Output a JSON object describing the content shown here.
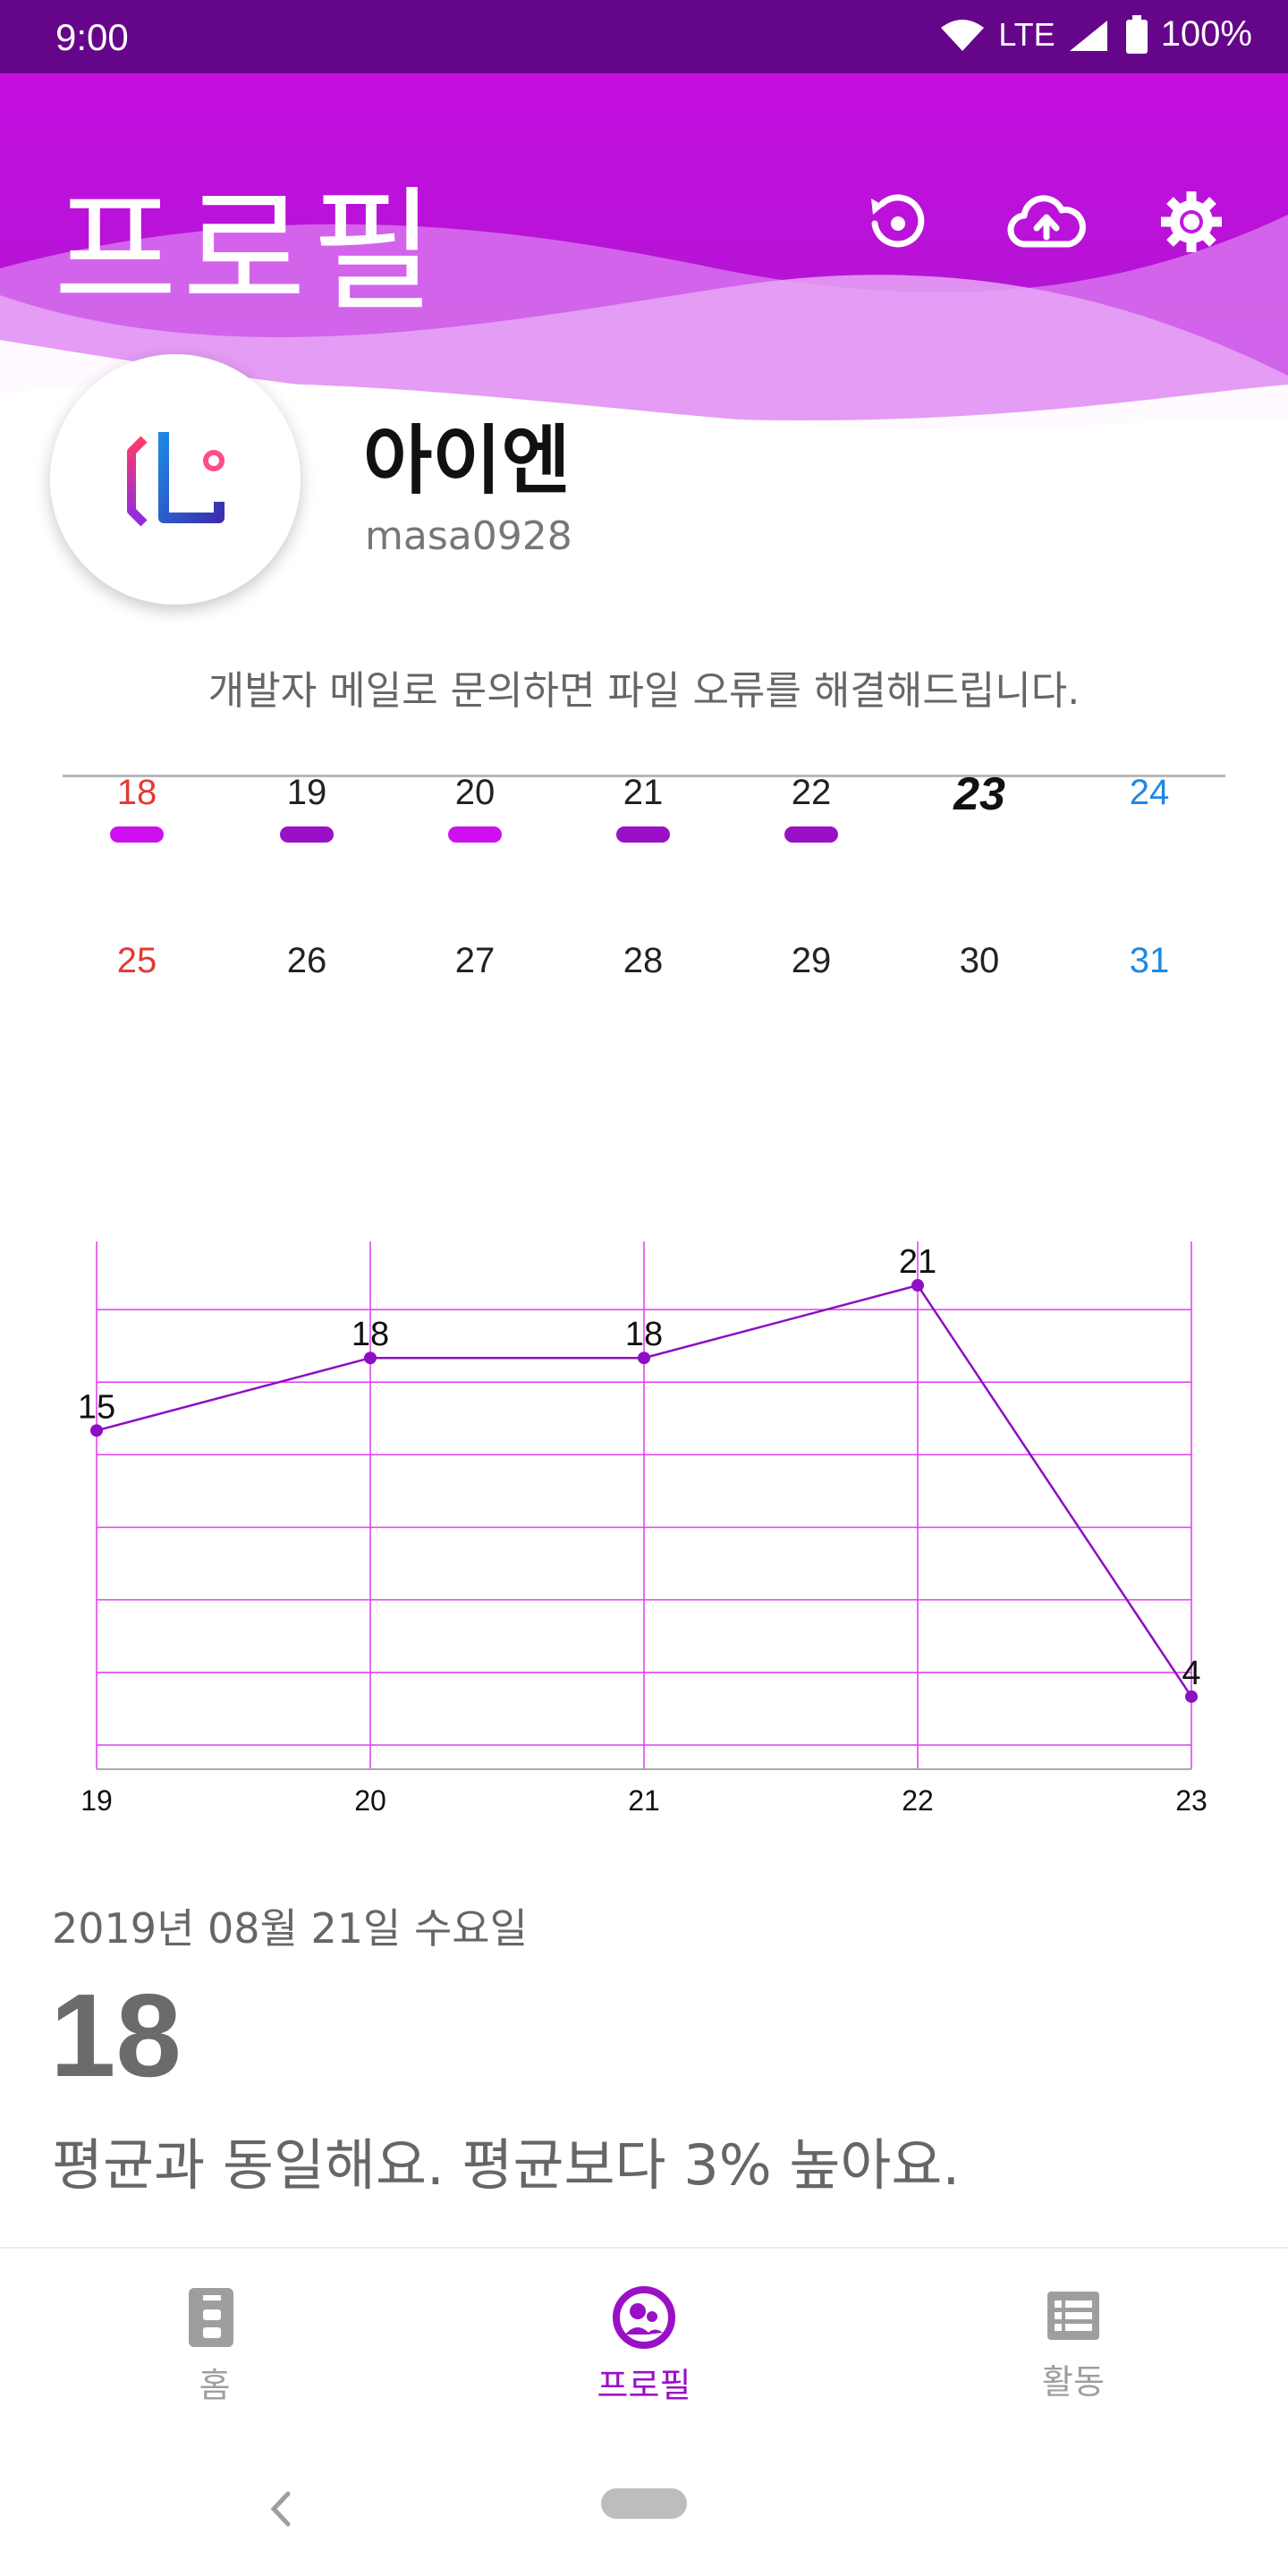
{
  "status": {
    "time": "9:00",
    "network": "LTE",
    "battery": "100%"
  },
  "header": {
    "title": "프로필",
    "icons": [
      "restore-icon",
      "cloud-upload-icon",
      "gear-icon"
    ]
  },
  "profile": {
    "name": "아이엔",
    "user_id": "masa0928"
  },
  "notice": "개발자 메일로 문의하면 파일 오류를 해결해드립니다.",
  "calendar": {
    "week1": [
      {
        "day": "18",
        "color": "#e53935",
        "marker": "#cc11ee"
      },
      {
        "day": "19",
        "color": "#222222",
        "marker": "#9a10c6"
      },
      {
        "day": "20",
        "color": "#222222",
        "marker": "#cc11ee"
      },
      {
        "day": "21",
        "color": "#222222",
        "marker": "#9a10c6"
      },
      {
        "day": "22",
        "color": "#222222",
        "marker": "#9a10c6"
      },
      {
        "day": "23",
        "color": "#111111",
        "marker": ""
      },
      {
        "day": "24",
        "color": "#1e88e5",
        "marker": ""
      }
    ],
    "week2": [
      {
        "day": "25",
        "color": "#e53935"
      },
      {
        "day": "26",
        "color": "#222222"
      },
      {
        "day": "27",
        "color": "#222222"
      },
      {
        "day": "28",
        "color": "#222222"
      },
      {
        "day": "29",
        "color": "#222222"
      },
      {
        "day": "30",
        "color": "#222222"
      },
      {
        "day": "31",
        "color": "#1e88e5"
      }
    ],
    "today": "23"
  },
  "chart_data": {
    "type": "line",
    "x": [
      "19",
      "20",
      "21",
      "22",
      "23"
    ],
    "series": [
      {
        "values": [
          15,
          18,
          18,
          21,
          4
        ]
      }
    ],
    "ylim": [
      1,
      22
    ],
    "grid": true,
    "line_color": "#8e0ec2",
    "grid_color": "#e23bf2"
  },
  "detail": {
    "date": "2019년 08월 21일 수요일",
    "value": "18",
    "comparison": "평균과 동일해요. 평균보다 3% 높아요."
  },
  "bottom_nav": [
    {
      "label": "홈",
      "icon": "home-icon",
      "active": false
    },
    {
      "label": "프로필",
      "icon": "profile-icon",
      "active": true
    },
    {
      "label": "활동",
      "icon": "list-icon",
      "active": false
    }
  ],
  "colors": {
    "accent": "#9a10c6",
    "header": "#c40ee0",
    "status_bar": "#65068a"
  }
}
